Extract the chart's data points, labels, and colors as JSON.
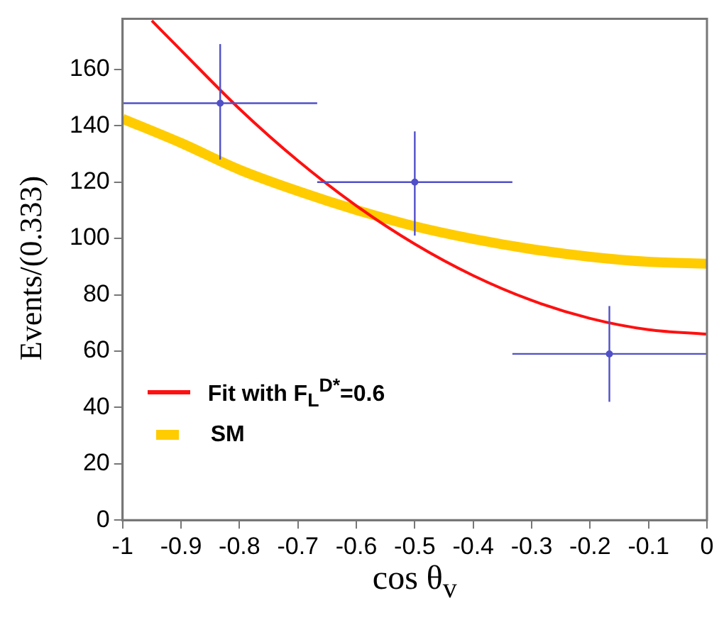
{
  "chart_data": {
    "type": "line",
    "xlabel": "cos θ$_{v}$",
    "ylabel": "Events/(0.333)",
    "xlim": [
      -1,
      0
    ],
    "xticks": [
      -1,
      -0.9,
      -0.8,
      -0.7,
      -0.6,
      -0.5,
      -0.4,
      -0.3,
      -0.2,
      -0.1,
      0
    ],
    "ylim": [
      0,
      178
    ],
    "yticks": [
      0,
      20,
      40,
      60,
      80,
      100,
      120,
      140,
      160
    ],
    "grid": false,
    "legend": "bottom left",
    "series": [
      {
        "type": "scatter",
        "color": "#5050c8",
        "x": [
          -0.833,
          -0.5,
          -0.167
        ],
        "values": [
          148,
          120,
          59
        ],
        "errors": [
          [
            128,
            169
          ],
          [
            101,
            138
          ],
          [
            42,
            76
          ]
        ],
        "xerrors": [
          [
            -1,
            -0.667
          ],
          [
            -0.667,
            -0.333
          ],
          [
            -0.333,
            0
          ]
        ]
      },
      {
        "name": "Fit with F$_{L}$$^{D*}$=0.6",
        "color": "#ff1010",
        "x": [
          -0.95,
          -0.9,
          -0.8,
          -0.7,
          -0.6,
          -0.5,
          -0.4,
          -0.3,
          -0.2,
          -0.1,
          0
        ],
        "values": [
          177.3,
          166.8,
          146,
          127.6,
          111.6,
          98,
          86.8,
          78,
          71.6,
          67.6,
          66
        ]
      },
      {
        "name": "SM",
        "color": "#ffcc00",
        "x": [
          -1,
          -0.9,
          -0.8,
          -0.7,
          -0.6,
          -0.5,
          -0.4,
          -0.3,
          -0.2,
          -0.1,
          0
        ],
        "values": [
          142.5,
          133.9,
          124.4,
          116.8,
          110.1,
          104.3,
          99.8,
          96.2,
          93.5,
          91.7,
          91
        ]
      }
    ]
  }
}
